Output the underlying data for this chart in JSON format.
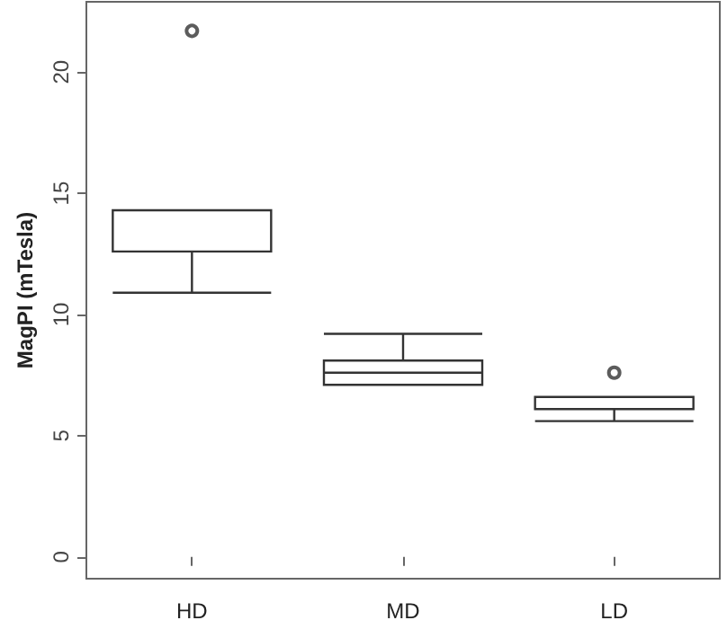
{
  "chart_data": {
    "type": "box",
    "ylabel": "MagPI (mTesla)",
    "categories": [
      "HD",
      "MD",
      "LD"
    ],
    "boxes": [
      {
        "low": 10.9,
        "q1": 12.6,
        "median": 12.6,
        "q3": 14.3,
        "high": 14.3,
        "outliers": [
          21.7
        ]
      },
      {
        "low": 7.1,
        "q1": 7.1,
        "median": 7.6,
        "q3": 8.1,
        "high": 9.2
      },
      {
        "low": 5.6,
        "q1": 6.1,
        "median": 6.1,
        "q3": 6.6,
        "high": 6.6,
        "outliers": [
          7.6
        ]
      }
    ],
    "color": "#333333",
    "ylim": [
      -0.9,
      22.9
    ],
    "yticks": [
      0,
      5,
      10,
      15,
      20
    ],
    "grid": false
  }
}
